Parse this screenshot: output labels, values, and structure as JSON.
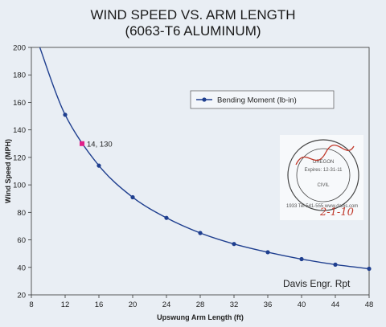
{
  "chart_data": {
    "type": "line",
    "title": "WIND SPEED VS. ARM LENGTH",
    "subtitle": "(6063-T6 ALUMINUM)",
    "xlabel": "Upswung Arm Length (ft)",
    "ylabel": "Wind Speed (MPH)",
    "xlim": [
      8,
      48
    ],
    "ylim": [
      20,
      200
    ],
    "x_ticks": [
      8,
      12,
      16,
      20,
      24,
      28,
      32,
      36,
      40,
      44,
      48
    ],
    "y_ticks": [
      20,
      40,
      60,
      80,
      100,
      120,
      140,
      160,
      180,
      200
    ],
    "grid": false,
    "legend_position": "right",
    "series": [
      {
        "name": "Bending Moment (lb-in)",
        "color": "#1f3f8f",
        "curve_start": [
          9,
          200
        ],
        "x": [
          12,
          16,
          20,
          24,
          28,
          32,
          36,
          40,
          44,
          48
        ],
        "y": [
          151,
          114,
          91,
          76,
          65,
          57,
          51,
          46,
          42,
          39
        ]
      }
    ],
    "highlight_point": {
      "x": 14,
      "y": 130,
      "label": "14, 130",
      "color": "#e0218a"
    }
  },
  "annotations": {
    "source_label": "Davis Engr. Rpt"
  },
  "stamp": {
    "top_text": "PROFESSIONAL ENGINEER",
    "state": "OREGON",
    "reg_no": "No. 16199",
    "discipline": "CIVIL",
    "expires_line": "Expires: 12-31-11",
    "signature_text": "Marks",
    "signature_date": "2-1-10",
    "ring_text_left": "REG. NO.",
    "small_text": "1933   Tel 541-555   www.davis.com"
  }
}
